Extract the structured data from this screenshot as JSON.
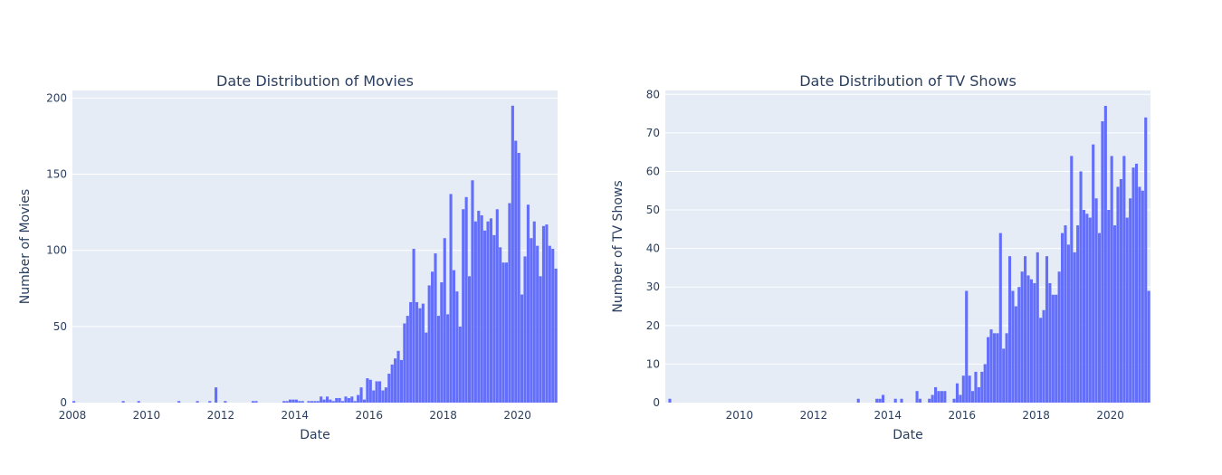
{
  "chart_data": [
    {
      "type": "bar",
      "title": "Date Distribution of Movies",
      "xlabel": "Date",
      "ylabel": "Number of Movies",
      "xlim": [
        "2008-01",
        "2021-02"
      ],
      "ylim": [
        0,
        205
      ],
      "x_ticks": [
        "2008",
        "2010",
        "2012",
        "2014",
        "2016",
        "2018",
        "2020"
      ],
      "y_ticks": [
        0,
        50,
        100,
        150,
        200
      ],
      "grid": true,
      "bar_color": "#636efa",
      "plot_bg": "#e5ecf6",
      "x": [
        "2008-01",
        "2009-05",
        "2009-10",
        "2010-11",
        "2011-05",
        "2011-09",
        "2011-11",
        "2012-02",
        "2012-11",
        "2012-12",
        "2013-09",
        "2013-10",
        "2013-11",
        "2013-12",
        "2014-01",
        "2014-02",
        "2014-03",
        "2014-05",
        "2014-06",
        "2014-07",
        "2014-08",
        "2014-09",
        "2014-10",
        "2014-11",
        "2014-12",
        "2015-01",
        "2015-02",
        "2015-03",
        "2015-04",
        "2015-05",
        "2015-06",
        "2015-07",
        "2015-08",
        "2015-09",
        "2015-10",
        "2015-11",
        "2015-12",
        "2016-01",
        "2016-02",
        "2016-03",
        "2016-04",
        "2016-05",
        "2016-06",
        "2016-07",
        "2016-08",
        "2016-09",
        "2016-10",
        "2016-11",
        "2016-12",
        "2017-01",
        "2017-02",
        "2017-03",
        "2017-04",
        "2017-05",
        "2017-06",
        "2017-07",
        "2017-08",
        "2017-09",
        "2017-10",
        "2017-11",
        "2017-12",
        "2018-01",
        "2018-02",
        "2018-03",
        "2018-04",
        "2018-05",
        "2018-06",
        "2018-07",
        "2018-08",
        "2018-09",
        "2018-10",
        "2018-11",
        "2018-12",
        "2019-01",
        "2019-02",
        "2019-03",
        "2019-04",
        "2019-05",
        "2019-06",
        "2019-07",
        "2019-08",
        "2019-09",
        "2019-10",
        "2019-11",
        "2019-12",
        "2020-01",
        "2020-02",
        "2020-03",
        "2020-04",
        "2020-05",
        "2020-06",
        "2020-07",
        "2020-08",
        "2020-09",
        "2020-10",
        "2020-11",
        "2020-12",
        "2021-01"
      ],
      "values": [
        1,
        1,
        1,
        1,
        1,
        1,
        10,
        1,
        1,
        1,
        1,
        1,
        2,
        2,
        2,
        1,
        1,
        1,
        1,
        1,
        1,
        4,
        2,
        4,
        2,
        1,
        3,
        3,
        1,
        4,
        3,
        4,
        1,
        5,
        10,
        2,
        16,
        15,
        8,
        14,
        14,
        8,
        10,
        19,
        25,
        29,
        34,
        28,
        52,
        57,
        66,
        101,
        66,
        62,
        65,
        46,
        77,
        86,
        98,
        57,
        79,
        108,
        58,
        137,
        87,
        73,
        50,
        127,
        135,
        83,
        146,
        119,
        126,
        123,
        113,
        119,
        121,
        110,
        127,
        102,
        92,
        92,
        131,
        195,
        172,
        164,
        71,
        96,
        130,
        108,
        119,
        103,
        83,
        116,
        117,
        103,
        101,
        88
      ]
    },
    {
      "type": "bar",
      "title": "Date Distribution of TV Shows",
      "xlabel": "Date",
      "ylabel": "Number of TV Shows",
      "xlim": [
        "2008-01",
        "2021-02"
      ],
      "ylim": [
        0,
        81
      ],
      "x_ticks": [
        "2010",
        "2012",
        "2014",
        "2016",
        "2018",
        "2020"
      ],
      "y_ticks": [
        0,
        10,
        20,
        30,
        40,
        50,
        60,
        70,
        80
      ],
      "grid": true,
      "bar_color": "#636efa",
      "plot_bg": "#e5ecf6",
      "x": [
        "2008-02",
        "2013-03",
        "2013-09",
        "2013-10",
        "2013-11",
        "2014-03",
        "2014-05",
        "2014-10",
        "2014-11",
        "2015-02",
        "2015-03",
        "2015-04",
        "2015-05",
        "2015-06",
        "2015-07",
        "2015-10",
        "2015-11",
        "2015-12",
        "2016-01",
        "2016-02",
        "2016-03",
        "2016-04",
        "2016-05",
        "2016-06",
        "2016-07",
        "2016-08",
        "2016-09",
        "2016-10",
        "2016-11",
        "2016-12",
        "2017-01",
        "2017-02",
        "2017-03",
        "2017-04",
        "2017-05",
        "2017-06",
        "2017-07",
        "2017-08",
        "2017-09",
        "2017-10",
        "2017-11",
        "2017-12",
        "2018-01",
        "2018-02",
        "2018-03",
        "2018-04",
        "2018-05",
        "2018-06",
        "2018-07",
        "2018-08",
        "2018-09",
        "2018-10",
        "2018-11",
        "2018-12",
        "2019-01",
        "2019-02",
        "2019-03",
        "2019-04",
        "2019-05",
        "2019-06",
        "2019-07",
        "2019-08",
        "2019-09",
        "2019-10",
        "2019-11",
        "2019-12",
        "2020-01",
        "2020-02",
        "2020-03",
        "2020-04",
        "2020-05",
        "2020-06",
        "2020-07",
        "2020-08",
        "2020-09",
        "2020-10",
        "2020-11",
        "2020-12",
        "2021-01"
      ],
      "values": [
        1,
        1,
        1,
        1,
        2,
        1,
        1,
        3,
        1,
        1,
        2,
        4,
        3,
        3,
        3,
        1,
        5,
        2,
        7,
        29,
        7,
        3,
        8,
        4,
        8,
        10,
        17,
        19,
        18,
        18,
        44,
        14,
        18,
        38,
        29,
        25,
        30,
        34,
        38,
        33,
        32,
        31,
        39,
        22,
        24,
        38,
        31,
        28,
        28,
        34,
        44,
        46,
        41,
        64,
        39,
        46,
        60,
        50,
        49,
        48,
        67,
        53,
        44,
        73,
        77,
        50,
        64,
        46,
        56,
        58,
        64,
        48,
        53,
        61,
        62,
        56,
        55,
        74,
        29
      ]
    }
  ]
}
